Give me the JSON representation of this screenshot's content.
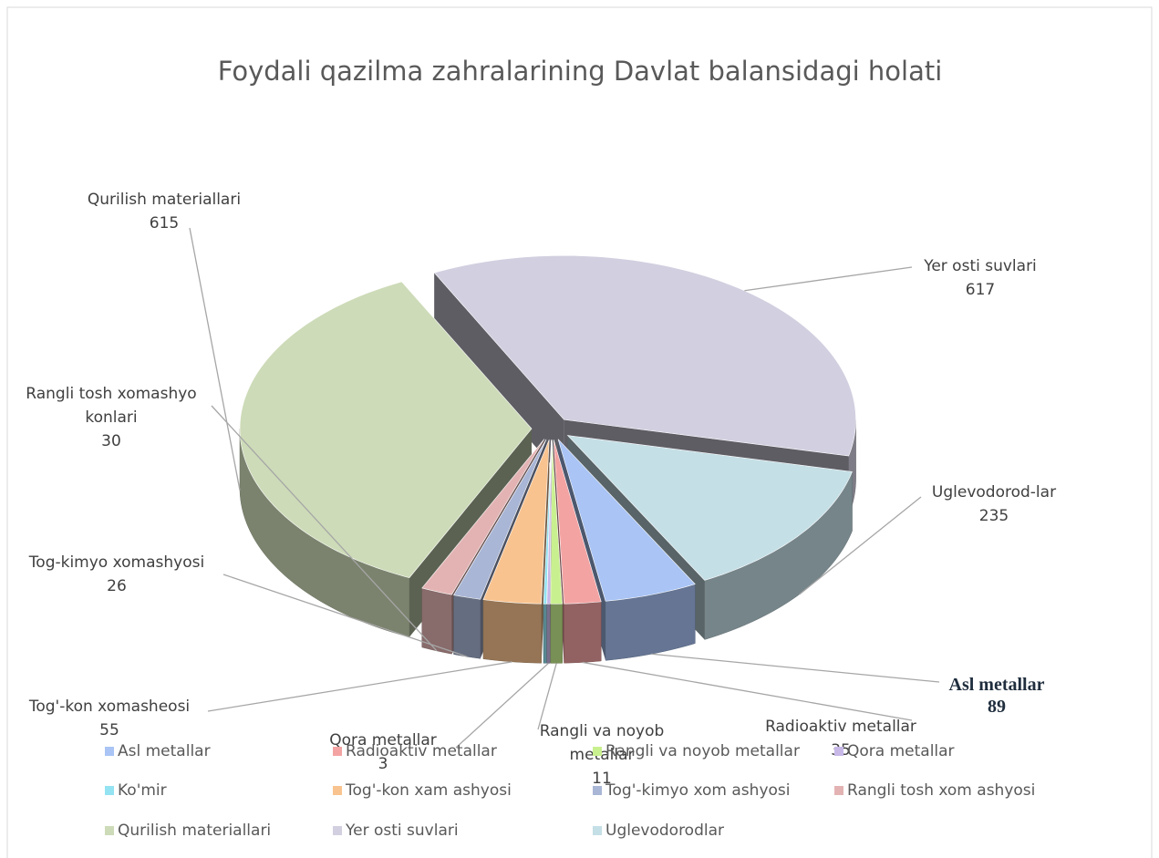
{
  "chart_data": {
    "type": "pie",
    "title": "Foydali qazilma zahralarining Davlat balansidagi holati",
    "categories": [
      "Asl metallar",
      "Radioaktiv metallar",
      "Rangli va noyob metallar",
      "Qora metallar",
      "Ko'mir",
      "Tog'-kon xam ashyosi",
      "Tog'-kimyo xom ashyosi",
      "Rangli tosh xom ashyosi",
      "Qurilish materiallari",
      "Yer osti suvlari",
      "Uglevodorodlar"
    ],
    "values": [
      89,
      35,
      11,
      3,
      3,
      55,
      26,
      30,
      615,
      617,
      235
    ],
    "label_names": [
      "Asl metallar",
      "Radioaktiv metallar",
      "Rangli va noyob metallar",
      "Qora metallar",
      null,
      "Tog'-kon xomasheosi",
      "Tog-kimyo xomashyosi",
      "Rangli tosh xomashyo konlari",
      "Qurilish materiallari",
      "Yer osti suvlari",
      "Uglevodorod-lar"
    ],
    "colors": [
      "#a9c4f5",
      "#f4a3a3",
      "#c9f08f",
      "#c8b8e8",
      "#93e3f2",
      "#f9c38f",
      "#a9b6d6",
      "#e3b3b3",
      "#cddbb8",
      "#d2cfe0",
      "#c5dfe6"
    ],
    "legend": "bottom"
  }
}
